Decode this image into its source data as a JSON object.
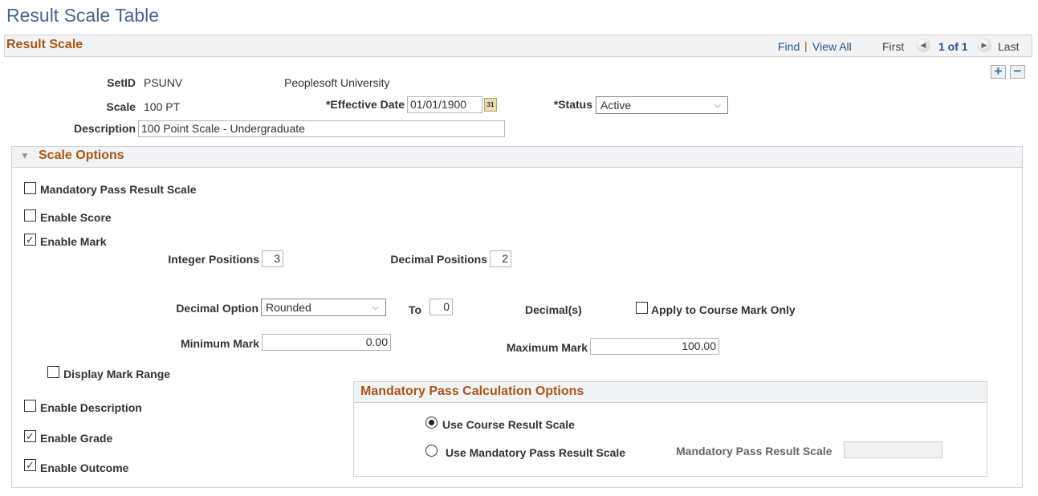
{
  "page_title": "Result Scale Table",
  "result_scale": {
    "header": "Result Scale",
    "nav": {
      "find": "Find",
      "separator": "|",
      "view_all": "View All",
      "first": "First",
      "position": "1 of 1",
      "last": "Last"
    },
    "add_row": "+",
    "delete_row": "−",
    "setid_label": "SetID",
    "setid_value": "PSUNV",
    "setid_desc": "Peoplesoft University",
    "scale_label": "Scale",
    "scale_value": "100 PT",
    "effective_date_label": "*Effective Date",
    "effective_date_value": "01/01/1900",
    "calendar_icon_text": "31",
    "status_label": "*Status",
    "status_value": "Active",
    "description_label": "Description",
    "description_value": "100 Point Scale - Undergraduate"
  },
  "scale_options": {
    "header": "Scale Options",
    "mandatory_pass": {
      "label": "Mandatory Pass Result Scale",
      "checked": false
    },
    "enable_score": {
      "label": "Enable Score",
      "checked": false
    },
    "enable_mark": {
      "label": "Enable Mark",
      "checked": true
    },
    "integer_positions_label": "Integer Positions",
    "integer_positions_value": "3",
    "decimal_positions_label": "Decimal Positions",
    "decimal_positions_value": "2",
    "decimal_option_label": "Decimal Option",
    "decimal_option_value": "Rounded",
    "to_label": "To",
    "to_value": "0",
    "decimals_label": "Decimal(s)",
    "apply_course_mark": {
      "label": "Apply to Course Mark Only",
      "checked": false
    },
    "minimum_mark_label": "Minimum Mark",
    "minimum_mark_value": "0.00",
    "maximum_mark_label": "Maximum Mark",
    "maximum_mark_value": "100.00",
    "display_mark_range": {
      "label": "Display Mark Range",
      "checked": false
    },
    "enable_description": {
      "label": "Enable Description",
      "checked": false
    },
    "enable_grade": {
      "label": "Enable Grade",
      "checked": true
    },
    "enable_outcome": {
      "label": "Enable Outcome",
      "checked": true
    }
  },
  "mandatory_pass_calc": {
    "header": "Mandatory Pass Calculation Options",
    "use_course": {
      "label": "Use Course Result Scale",
      "selected": true
    },
    "use_mandatory": {
      "label": "Use Mandatory Pass Result Scale",
      "selected": false
    },
    "mp_scale_label": "Mandatory Pass Result Scale",
    "mp_scale_value": ""
  },
  "colors": {
    "header_text": "#a9561a",
    "title": "#46668e",
    "link": "#2d5389"
  }
}
